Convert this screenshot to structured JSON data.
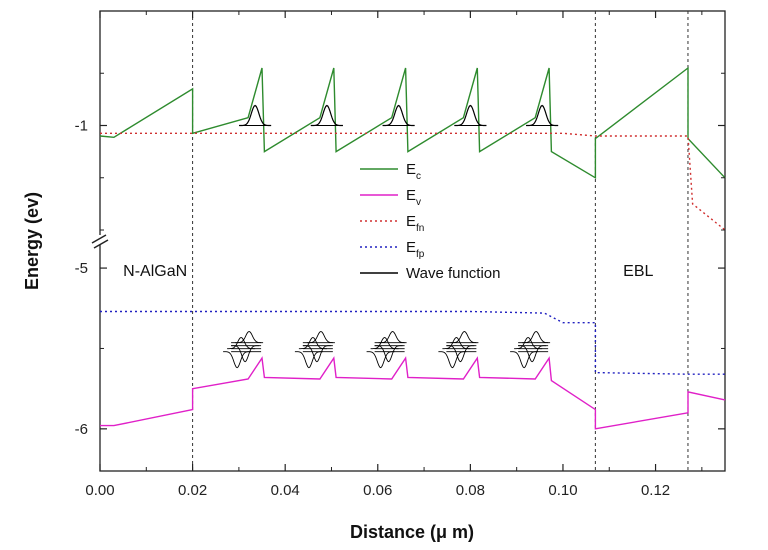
{
  "chart_data": {
    "type": "line",
    "xlabel": "Distance (μ m)",
    "ylabel": "Energy (ev)",
    "xlim": [
      0.0,
      0.135
    ],
    "x_ticks": [
      "0.00",
      "0.02",
      "0.04",
      "0.06",
      "0.08",
      "0.10",
      "0.12"
    ],
    "x_tick_values": [
      0.0,
      0.02,
      0.04,
      0.06,
      0.08,
      0.1,
      0.12
    ],
    "axis_break": true,
    "y_ticks": [
      "-1",
      "-5",
      "-6"
    ],
    "y_tick_values": [
      -1,
      -5,
      -6
    ],
    "y_upper_range": [
      -1.4,
      -0.6
    ],
    "y_lower_range": [
      -6.2,
      -4.9
    ],
    "region_boundaries": [
      0.02,
      0.107,
      0.127
    ],
    "region_labels": [
      {
        "text": "N-AlGaN",
        "x": 0.005,
        "y": -5.0
      },
      {
        "text": "EBL",
        "x": 0.113,
        "y": -5.0
      }
    ],
    "legend": {
      "placement": "center",
      "items": [
        {
          "main": "E",
          "sub": "c",
          "color": "#2e8b2e",
          "style": "solid"
        },
        {
          "main": "E",
          "sub": "v",
          "color": "#e020c8",
          "style": "solid"
        },
        {
          "main": "E",
          "sub": "fn",
          "color": "#d03030",
          "style": "dotted"
        },
        {
          "main": "E",
          "sub": "fp",
          "color": "#2020c0",
          "style": "dotted"
        },
        {
          "main": "Wave function",
          "sub": "",
          "color": "#000000",
          "style": "solid"
        }
      ]
    },
    "series": [
      {
        "name": "E_c",
        "color": "#2e8b2e",
        "x": [
          0.0,
          0.003,
          0.02,
          0.02,
          0.032,
          0.035,
          0.0355,
          0.0475,
          0.0505,
          0.051,
          0.063,
          0.066,
          0.0665,
          0.0785,
          0.0815,
          0.082,
          0.094,
          0.097,
          0.0975,
          0.107,
          0.107,
          0.127,
          0.127,
          0.135
        ],
        "y": [
          -1.04,
          -1.045,
          -0.86,
          -1.03,
          -0.97,
          -0.78,
          -1.1,
          -0.97,
          -0.78,
          -1.1,
          -0.97,
          -0.78,
          -1.1,
          -0.97,
          -0.78,
          -1.1,
          -0.97,
          -0.78,
          -1.1,
          -1.2,
          -1.05,
          -0.78,
          -1.05,
          -1.2
        ]
      },
      {
        "name": "E_v",
        "color": "#e020c8",
        "x": [
          0.0,
          0.003,
          0.02,
          0.02,
          0.032,
          0.035,
          0.0355,
          0.0475,
          0.0505,
          0.051,
          0.063,
          0.066,
          0.0665,
          0.0785,
          0.0815,
          0.082,
          0.094,
          0.097,
          0.0975,
          0.107,
          0.107,
          0.127,
          0.127,
          0.135
        ],
        "y": [
          -5.98,
          -5.98,
          -5.88,
          -5.75,
          -5.69,
          -5.56,
          -5.68,
          -5.69,
          -5.56,
          -5.68,
          -5.69,
          -5.56,
          -5.68,
          -5.69,
          -5.56,
          -5.68,
          -5.69,
          -5.56,
          -5.7,
          -5.88,
          -6.0,
          -5.9,
          -5.77,
          -5.82
        ]
      },
      {
        "name": "E_fn",
        "color": "#d03030",
        "x": [
          0.0,
          0.02,
          0.04,
          0.06,
          0.08,
          0.1,
          0.107,
          0.115,
          0.127,
          0.128,
          0.135
        ],
        "y": [
          -1.03,
          -1.03,
          -1.03,
          -1.03,
          -1.03,
          -1.03,
          -1.04,
          -1.04,
          -1.04,
          -1.3,
          -1.4
        ]
      },
      {
        "name": "E_fp",
        "color": "#2020c0",
        "x": [
          0.0,
          0.02,
          0.04,
          0.06,
          0.08,
          0.096,
          0.1,
          0.107,
          0.107,
          0.127,
          0.135
        ],
        "y": [
          -5.27,
          -5.27,
          -5.27,
          -5.27,
          -5.27,
          -5.28,
          -5.34,
          -5.34,
          -5.65,
          -5.66,
          -5.66
        ]
      }
    ],
    "wave_function_centers": [
      0.0335,
      0.049,
      0.0645,
      0.08,
      0.0955
    ]
  }
}
